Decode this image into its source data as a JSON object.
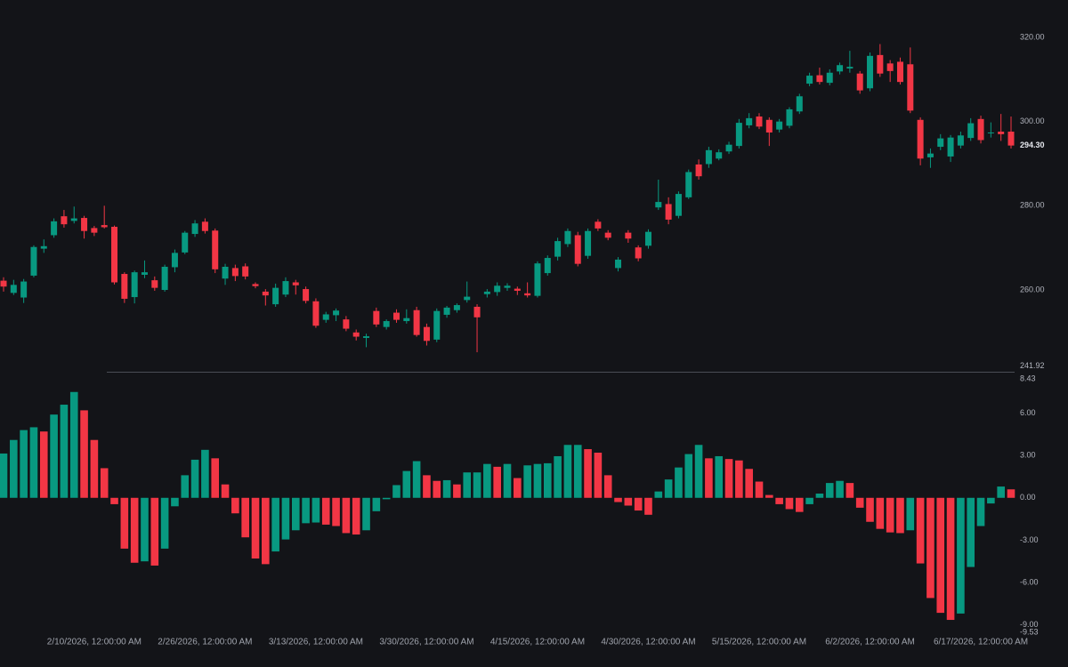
{
  "chart_data": [
    {
      "type": "candlestick",
      "categories": [
        null,
        null,
        null,
        null,
        null,
        null,
        null,
        null,
        null,
        "2/10/2026, 12:00:00 AM",
        null,
        null,
        null,
        null,
        null,
        null,
        null,
        null,
        null,
        null,
        "2/26/2026, 12:00:00 AM",
        null,
        null,
        null,
        null,
        null,
        null,
        null,
        null,
        null,
        null,
        "3/13/2026, 12:00:00 AM",
        null,
        null,
        null,
        null,
        null,
        null,
        null,
        null,
        null,
        null,
        "3/30/2026, 12:00:00 AM",
        null,
        null,
        null,
        null,
        null,
        null,
        null,
        null,
        null,
        null,
        "4/15/2026, 12:00:00 AM",
        null,
        null,
        null,
        null,
        null,
        null,
        null,
        null,
        null,
        null,
        "4/30/2026, 12:00:00 AM",
        null,
        null,
        null,
        null,
        null,
        null,
        null,
        null,
        null,
        null,
        "5/15/2026, 12:00:00 AM",
        null,
        null,
        null,
        null,
        null,
        null,
        null,
        null,
        null,
        null,
        "6/2/2026, 12:00:00 AM",
        null,
        null,
        null,
        null,
        null,
        null,
        null,
        null,
        null,
        null,
        "6/17/2026, 12:00:00 AM",
        null,
        null,
        null
      ],
      "open": [
        262.2,
        259.3,
        258.2,
        263.4,
        269.8,
        273.0,
        277.5,
        276.4,
        277.1,
        274.7,
        275.4,
        275.0,
        263.8,
        258.3,
        263.6,
        262.3,
        260.0,
        265.4,
        268.9,
        273.3,
        276.2,
        274.1,
        262.7,
        265.2,
        265.6,
        261.4,
        259.6,
        256.6,
        258.9,
        261.8,
        260.2,
        257.3,
        252.9,
        254.0,
        253.0,
        249.9,
        248.6,
        255.0,
        251.2,
        254.6,
        252.6,
        255.2,
        251.2,
        248.2,
        254.1,
        255.2,
        257.6,
        256.0,
        259.0,
        259.5,
        260.5,
        260.3,
        259.2,
        258.6,
        264.0,
        267.9,
        270.9,
        273.0,
        268.1,
        276.2,
        273.6,
        265.2,
        273.6,
        270.1,
        270.5,
        279.6,
        280.4,
        277.6,
        282.0,
        289.8,
        289.9,
        291.2,
        292.9,
        294.2,
        299.1,
        301.2,
        300.4,
        298.1,
        299.0,
        302.4,
        309.0,
        311.0,
        309.2,
        311.9,
        312.6,
        311.4,
        307.9,
        315.8,
        313.8,
        314.2,
        313.6,
        300.4,
        291.5,
        294.0,
        291.7,
        294.3,
        296.1,
        300.6,
        297.2,
        297.6,
        297.6
      ],
      "high": [
        263.0,
        262.4,
        262.6,
        270.6,
        272.0,
        277.0,
        279.0,
        279.8,
        277.6,
        275.2,
        280.0,
        275.3,
        264.2,
        264.6,
        267.0,
        263.2,
        266.0,
        269.6,
        274.0,
        276.6,
        277.0,
        274.6,
        266.2,
        266.0,
        266.3,
        261.8,
        260.2,
        261.5,
        263.0,
        262.4,
        260.8,
        258.0,
        254.8,
        255.6,
        253.8,
        250.6,
        249.6,
        255.8,
        253.0,
        255.4,
        255.4,
        256.0,
        252.0,
        255.6,
        256.2,
        256.8,
        262.0,
        256.6,
        260.2,
        261.8,
        261.6,
        260.8,
        261.8,
        266.8,
        268.2,
        272.4,
        274.6,
        273.8,
        274.6,
        276.8,
        274.2,
        267.8,
        274.2,
        270.6,
        274.4,
        286.2,
        282.0,
        283.4,
        288.6,
        291.0,
        294.0,
        293.4,
        295.2,
        300.6,
        302.0,
        302.0,
        301.0,
        300.6,
        303.4,
        306.6,
        311.6,
        312.8,
        312.4,
        314.0,
        316.8,
        312.0,
        316.4,
        318.4,
        314.6,
        315.2,
        317.6,
        301.0,
        293.6,
        297.0,
        296.8,
        297.6,
        300.8,
        301.4,
        299.8,
        301.8,
        301.2
      ],
      "low": [
        259.6,
        258.8,
        256.9,
        263.0,
        268.8,
        272.4,
        274.8,
        275.8,
        272.2,
        272.8,
        274.6,
        261.3,
        256.9,
        256.8,
        262.8,
        259.8,
        259.6,
        264.2,
        268.5,
        272.6,
        273.4,
        264.0,
        261.2,
        262.1,
        262.5,
        260.4,
        256.3,
        256.0,
        258.3,
        258.9,
        256.8,
        251.0,
        252.2,
        252.6,
        250.2,
        248.0,
        246.4,
        251.2,
        250.6,
        252.2,
        252.0,
        248.9,
        246.8,
        247.6,
        253.4,
        254.6,
        257.0,
        245.2,
        258.2,
        258.6,
        259.8,
        258.8,
        258.2,
        258.2,
        263.4,
        267.0,
        270.2,
        265.6,
        267.4,
        274.0,
        271.8,
        264.4,
        271.2,
        266.8,
        269.8,
        279.0,
        275.6,
        277.0,
        281.6,
        286.2,
        289.0,
        290.8,
        292.3,
        293.6,
        298.4,
        298.2,
        294.2,
        297.4,
        298.4,
        301.8,
        308.4,
        308.8,
        308.6,
        311.2,
        311.6,
        306.6,
        307.2,
        310.6,
        309.4,
        308.8,
        302.0,
        289.6,
        289.0,
        293.2,
        290.4,
        293.6,
        295.4,
        294.8,
        296.2,
        295.4,
        293.6
      ],
      "close": [
        260.8,
        261.2,
        262.0,
        270.2,
        270.4,
        276.3,
        275.6,
        277.0,
        274.0,
        273.6,
        274.9,
        261.8,
        257.9,
        264.2,
        264.2,
        260.5,
        265.5,
        268.8,
        273.6,
        275.8,
        274.0,
        264.9,
        265.5,
        263.3,
        263.2,
        260.9,
        258.7,
        260.5,
        262.1,
        261.1,
        257.4,
        251.5,
        254.2,
        255.1,
        250.8,
        248.9,
        249.0,
        251.8,
        252.6,
        252.9,
        253.3,
        249.3,
        247.9,
        255.0,
        255.8,
        256.4,
        258.4,
        253.5,
        259.6,
        261.0,
        261.0,
        259.8,
        258.7,
        266.3,
        267.6,
        271.6,
        274.0,
        266.2,
        274.0,
        274.6,
        272.4,
        267.2,
        272.2,
        267.5,
        273.8,
        280.9,
        276.7,
        282.8,
        288.0,
        287.0,
        293.2,
        292.7,
        294.5,
        299.7,
        300.8,
        298.8,
        297.4,
        300.0,
        302.9,
        306.0,
        310.9,
        309.4,
        311.6,
        313.4,
        313.0,
        307.4,
        315.6,
        311.4,
        312.0,
        309.4,
        302.6,
        291.2,
        292.4,
        296.0,
        296.2,
        296.7,
        299.6,
        295.6,
        297.4,
        297.0,
        294.3
      ],
      "up_color": "#089981",
      "down_color": "#f23645",
      "ylim": [
        241.92,
        328.87
      ],
      "yticks": [
        241.92,
        {
          "value": 260,
          "label": "260.00"
        },
        {
          "value": 280,
          "label": "280.00"
        },
        {
          "value": 300,
          "label": "300.00"
        },
        {
          "value": 320,
          "label": "320.00"
        }
      ],
      "last_price": {
        "value": 294.3,
        "label": "294.30"
      },
      "grid": false
    },
    {
      "type": "bar",
      "values": [
        3.14,
        4.1,
        4.8,
        5.0,
        4.7,
        5.9,
        6.6,
        7.5,
        6.2,
        4.1,
        2.1,
        -0.45,
        -3.6,
        -4.6,
        -4.5,
        -4.8,
        -3.6,
        -0.6,
        1.6,
        2.7,
        3.4,
        2.8,
        0.95,
        -1.1,
        -2.8,
        -4.3,
        -4.7,
        -3.8,
        -2.95,
        -2.3,
        -1.8,
        -1.75,
        -1.9,
        -2.0,
        -2.5,
        -2.6,
        -2.3,
        -0.95,
        -0.1,
        0.9,
        1.9,
        2.6,
        1.6,
        1.2,
        1.25,
        0.95,
        1.8,
        1.8,
        2.4,
        2.2,
        2.4,
        1.4,
        2.3,
        2.4,
        2.45,
        2.95,
        3.75,
        3.75,
        3.45,
        3.2,
        1.6,
        -0.3,
        -0.55,
        -0.9,
        -1.2,
        0.45,
        1.3,
        2.15,
        3.1,
        3.75,
        2.8,
        2.95,
        2.75,
        2.65,
        2.05,
        1.15,
        0.2,
        -0.45,
        -0.8,
        -1.0,
        -0.45,
        0.3,
        1.05,
        1.2,
        1.05,
        -0.7,
        -1.7,
        -2.2,
        -2.45,
        -2.5,
        -2.3,
        -4.65,
        -7.1,
        -8.15,
        -8.65,
        -8.2,
        -4.9,
        -2.0,
        -0.4,
        0.8,
        0.6
      ],
      "up_color": "#089981",
      "down_color": "#f23645",
      "ylim": [
        -9.53,
        8.43
      ],
      "yticks": [
        -9.53,
        {
          "value": -9,
          "label": "-9.00"
        },
        {
          "value": -6,
          "label": "-6.00"
        },
        {
          "value": -3,
          "label": "-3.00"
        },
        {
          "value": 0,
          "label": "0.00"
        },
        {
          "value": 3,
          "label": "3.00"
        },
        {
          "value": 6,
          "label": "6.00"
        },
        8.43
      ],
      "grid": false
    }
  ]
}
